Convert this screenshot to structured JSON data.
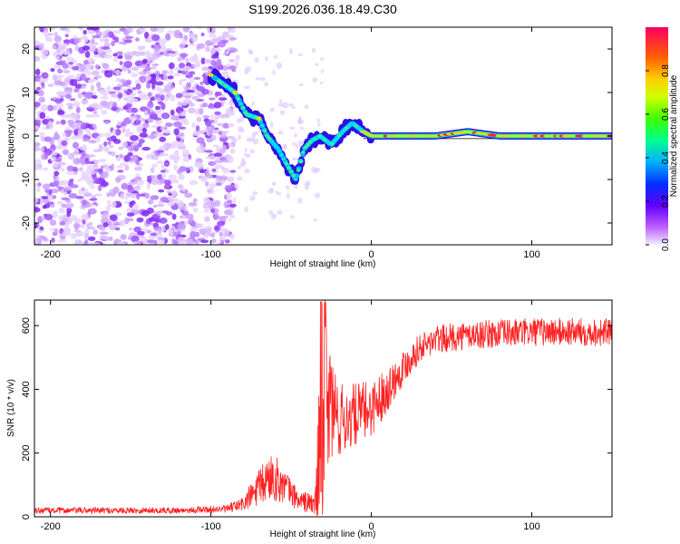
{
  "chart_data": [
    {
      "type": "heatmap",
      "title": "S199.2026.036.18.49.C30",
      "xlabel": "Height of straight line (km)",
      "ylabel": "Frequency (Hz)",
      "xlim": [
        -210,
        150
      ],
      "ylim": [
        -25,
        25
      ],
      "xticks": [
        -200,
        -100,
        0,
        100
      ],
      "xtick_labels": [
        "-200",
        "-100",
        "0",
        "100"
      ],
      "yticks": [
        -20,
        -10,
        0,
        10,
        20
      ],
      "ytick_labels": [
        "-20",
        "-10",
        "0",
        "10",
        "20"
      ],
      "colorbar": {
        "label": "Normalized spectral amplitude",
        "range": [
          0,
          1
        ],
        "ticks": [
          0.0,
          0.2,
          0.4,
          0.6,
          0.8
        ],
        "tick_labels": [
          "0.0",
          "0.2",
          "0.4",
          "0.6",
          "0.8"
        ],
        "colors": [
          "#f0f0ff",
          "#b000ff",
          "#3000ff",
          "#0060ff",
          "#00d0ff",
          "#00ff80",
          "#80ff00",
          "#ffff00",
          "#ffa000",
          "#ff3000",
          "#ff0060"
        ]
      },
      "noise_region_x": [
        -210,
        -90
      ],
      "carrier_path": [
        {
          "x": -100,
          "y": 14
        },
        {
          "x": -85,
          "y": 10
        },
        {
          "x": -78,
          "y": 5
        },
        {
          "x": -70,
          "y": 4
        },
        {
          "x": -65,
          "y": 0
        },
        {
          "x": -58,
          "y": -3
        },
        {
          "x": -52,
          "y": -7
        },
        {
          "x": -47,
          "y": -10
        },
        {
          "x": -42,
          "y": -3
        },
        {
          "x": -37,
          "y": -1
        },
        {
          "x": -32,
          "y": 0
        },
        {
          "x": -25,
          "y": -2
        },
        {
          "x": -18,
          "y": 1
        },
        {
          "x": -12,
          "y": 3
        },
        {
          "x": -5,
          "y": 1
        },
        {
          "x": 0,
          "y": 0
        },
        {
          "x": 20,
          "y": 0
        },
        {
          "x": 40,
          "y": 0
        },
        {
          "x": 60,
          "y": 1
        },
        {
          "x": 80,
          "y": 0
        },
        {
          "x": 100,
          "y": 0
        },
        {
          "x": 120,
          "y": 0
        },
        {
          "x": 150,
          "y": 0
        }
      ]
    },
    {
      "type": "line",
      "xlabel": "Height of straight line (km)",
      "ylabel": "SNR (10 * v/v)",
      "xlim": [
        -210,
        150
      ],
      "ylim": [
        0,
        680
      ],
      "xticks": [
        -200,
        -100,
        0,
        100
      ],
      "xtick_labels": [
        "-200",
        "-100",
        "0",
        "100"
      ],
      "yticks": [
        0,
        200,
        400,
        600
      ],
      "ytick_labels": [
        "0",
        "200",
        "400",
        "600"
      ],
      "series": [
        {
          "name": "SNR",
          "color": "#ff2020",
          "envelope": [
            {
              "x": -210,
              "mean": 20,
              "noise": 10
            },
            {
              "x": -120,
              "mean": 20,
              "noise": 10
            },
            {
              "x": -90,
              "mean": 25,
              "noise": 12
            },
            {
              "x": -80,
              "mean": 40,
              "noise": 25
            },
            {
              "x": -70,
              "mean": 90,
              "noise": 60
            },
            {
              "x": -62,
              "mean": 130,
              "noise": 80
            },
            {
              "x": -55,
              "mean": 100,
              "noise": 60
            },
            {
              "x": -45,
              "mean": 50,
              "noise": 30
            },
            {
              "x": -35,
              "mean": 40,
              "noise": 40
            },
            {
              "x": -32,
              "mean": 200,
              "noise": 300
            },
            {
              "x": -28,
              "mean": 380,
              "noise": 250
            },
            {
              "x": -20,
              "mean": 300,
              "noise": 120
            },
            {
              "x": -10,
              "mean": 320,
              "noise": 100
            },
            {
              "x": 0,
              "mean": 340,
              "noise": 90
            },
            {
              "x": 10,
              "mean": 400,
              "noise": 70
            },
            {
              "x": 20,
              "mean": 470,
              "noise": 55
            },
            {
              "x": 30,
              "mean": 530,
              "noise": 45
            },
            {
              "x": 40,
              "mean": 555,
              "noise": 45
            },
            {
              "x": 60,
              "mean": 570,
              "noise": 45
            },
            {
              "x": 80,
              "mean": 575,
              "noise": 45
            },
            {
              "x": 100,
              "mean": 580,
              "noise": 45
            },
            {
              "x": 120,
              "mean": 580,
              "noise": 45
            },
            {
              "x": 150,
              "mean": 580,
              "noise": 45
            }
          ]
        }
      ]
    }
  ]
}
